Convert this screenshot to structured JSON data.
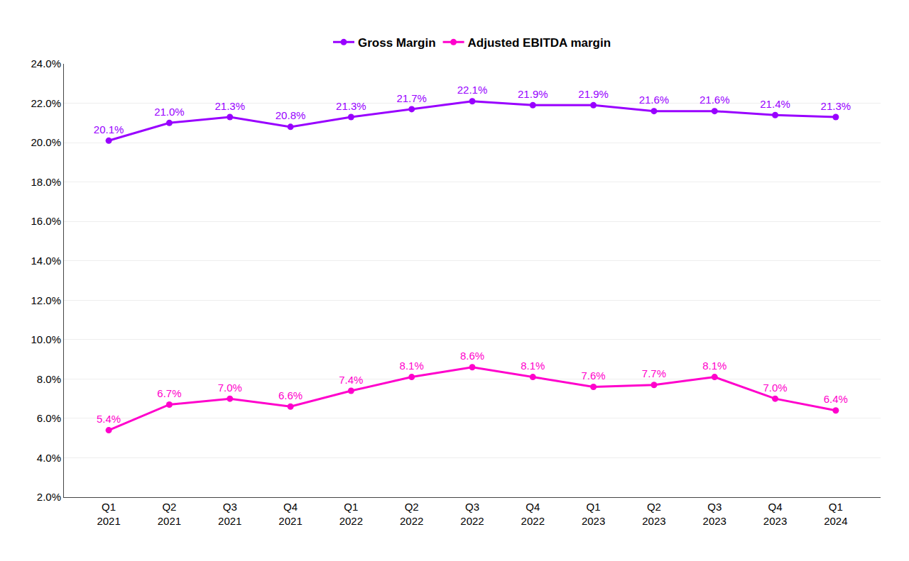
{
  "chart_data": {
    "type": "line",
    "categories": [
      "Q1\n2021",
      "Q2\n2021",
      "Q3\n2021",
      "Q4\n2021",
      "Q1\n2022",
      "Q2\n2022",
      "Q3\n2022",
      "Q4\n2022",
      "Q1\n2023",
      "Q2\n2023",
      "Q3\n2023",
      "Q4\n2023",
      "Q1\n2024"
    ],
    "series": [
      {
        "name": "Gross Margin",
        "color": "#9900FF",
        "marker": "circle",
        "values": [
          20.1,
          21.0,
          21.3,
          20.8,
          21.3,
          21.7,
          22.1,
          21.9,
          21.9,
          21.6,
          21.6,
          21.4,
          21.3
        ],
        "value_labels": [
          "20.1%",
          "21.0%",
          "21.3%",
          "20.8%",
          "21.3%",
          "21.7%",
          "22.1%",
          "21.9%",
          "21.9%",
          "21.6%",
          "21.6%",
          "21.4%",
          "21.3%"
        ]
      },
      {
        "name": "Adjusted EBITDA margin",
        "color": "#FF00CC",
        "marker": "circle",
        "values": [
          5.4,
          6.7,
          7.0,
          6.6,
          7.4,
          8.1,
          8.6,
          8.1,
          7.6,
          7.7,
          8.1,
          7.0,
          6.4
        ],
        "value_labels": [
          "5.4%",
          "6.7%",
          "7.0%",
          "6.6%",
          "7.4%",
          "8.1%",
          "8.6%",
          "8.1%",
          "7.6%",
          "7.7%",
          "8.1%",
          "7.0%",
          "6.4%"
        ]
      }
    ],
    "ylim": [
      2.0,
      24.0
    ],
    "yticks": [
      {
        "value": 2.0,
        "label": "2.0%"
      },
      {
        "value": 4.0,
        "label": "4.0%"
      },
      {
        "value": 6.0,
        "label": "6.0%"
      },
      {
        "value": 8.0,
        "label": "8.0%"
      },
      {
        "value": 10.0,
        "label": "10.0%"
      },
      {
        "value": 12.0,
        "label": "12.0%"
      },
      {
        "value": 14.0,
        "label": "14.0%"
      },
      {
        "value": 16.0,
        "label": "16.0%"
      },
      {
        "value": 18.0,
        "label": "18.0%"
      },
      {
        "value": 20.0,
        "label": "20.0%"
      },
      {
        "value": 22.0,
        "label": "22.0%"
      },
      {
        "value": 24.0,
        "label": "24.0%"
      }
    ],
    "grid": true,
    "legend": "top",
    "data_labels": true
  }
}
